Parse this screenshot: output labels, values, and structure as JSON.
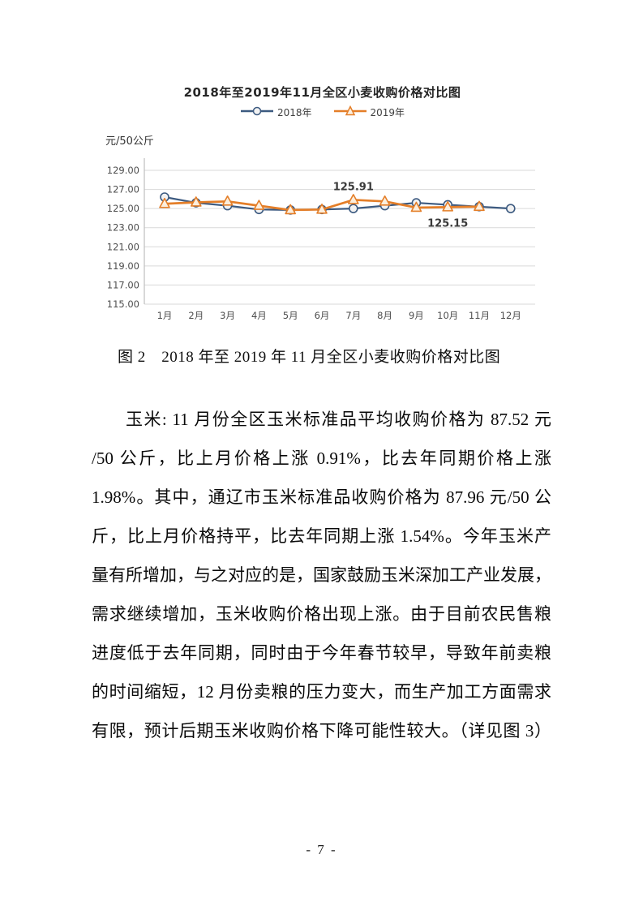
{
  "page": {
    "number": "- 7 -"
  },
  "figure": {
    "caption": "图 2　2018 年至 2019 年 11 月全区小麦收购价格对比图"
  },
  "chart_data": {
    "type": "line",
    "title": "2018年至2019年11月全区小麦收购价格对比图",
    "unit_label": "元/50公斤",
    "categories": [
      "1月",
      "2月",
      "3月",
      "4月",
      "5月",
      "6月",
      "7月",
      "8月",
      "9月",
      "10月",
      "11月",
      "12月"
    ],
    "series": [
      {
        "name": "2018年",
        "color": "#3c5a80",
        "marker": "circle",
        "marker_fill": "#f2f2f2",
        "values": [
          126.2,
          125.6,
          125.3,
          124.9,
          124.85,
          124.9,
          125.0,
          125.3,
          125.6,
          125.4,
          125.2,
          125.0
        ]
      },
      {
        "name": "2019年",
        "color": "#e47e28",
        "marker": "triangle",
        "marker_fill": "#fbeedd",
        "values": [
          125.5,
          125.65,
          125.75,
          125.3,
          124.85,
          124.9,
          125.91,
          125.75,
          125.1,
          125.15,
          125.2,
          null
        ]
      }
    ],
    "annotations": [
      {
        "series": 1,
        "index": 6,
        "text": "125.91",
        "position": "above"
      },
      {
        "series": 1,
        "index": 9,
        "text": "125.15",
        "position": "below"
      }
    ],
    "ylim": [
      115,
      129
    ],
    "ytick_labels": [
      "129.00",
      "127.00",
      "125.00",
      "123.00",
      "121.00",
      "119.00",
      "117.00",
      "115.00"
    ],
    "grid": true,
    "legend_position": "top",
    "grid_color": "#d9d9d9",
    "axis_color": "#bfbfbf",
    "tick_color": "#4d4d4d",
    "annotation_color": "#3a3a3a"
  },
  "paragraph": {
    "lines": [
      "玉米: 11 月份全区玉米标准品平均收购价格为 87.52 元",
      "/50 公斤，比上月价格上涨 0.91%，比去年同期价格上涨",
      "1.98%。其中，通辽市玉米标准品收购价格为 87.96 元/50 公",
      "斤，比上月价格持平，比去年同期上涨 1.54%。今年玉米产",
      "量有所增加，与之对应的是，国家鼓励玉米深加工产业发展，",
      "需求继续增加，玉米收购价格出现上涨。由于目前农民售粮",
      "进度低于去年同期，同时由于今年春节较早，导致年前卖粮",
      "的时间缩短，12 月份卖粮的压力变大，而生产加工方面需求",
      "有限，预计后期玉米收购价格下降可能性较大。（详见图 3）"
    ]
  }
}
